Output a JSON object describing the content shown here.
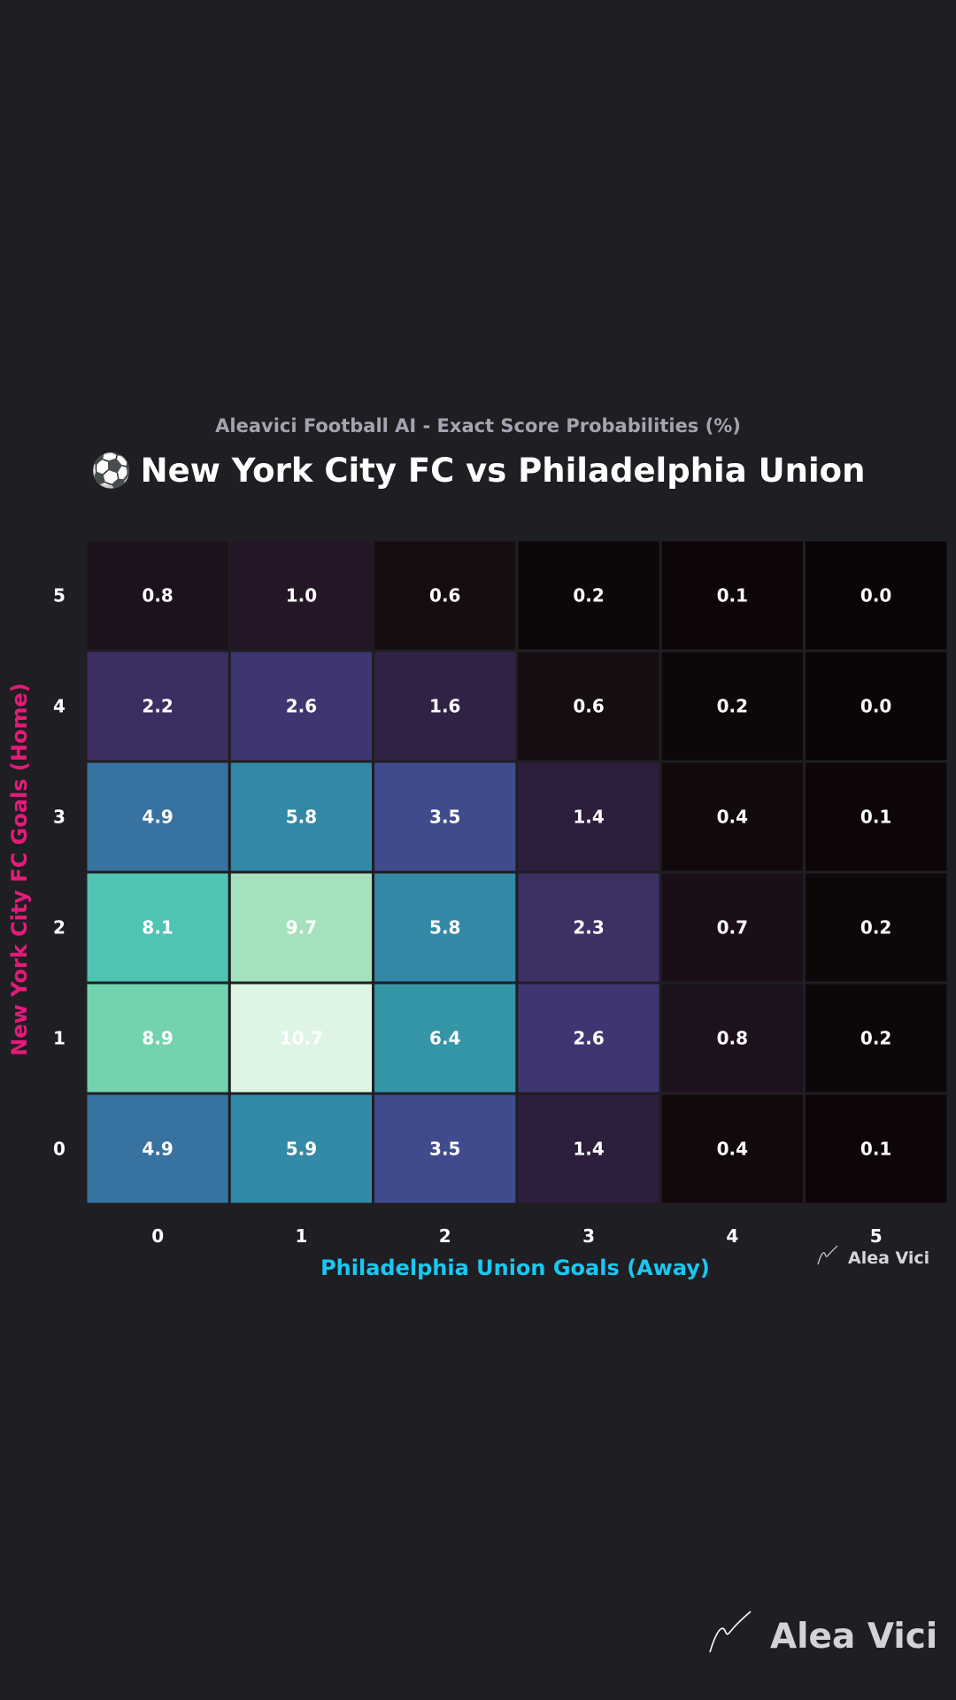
{
  "header": {
    "subtitle": "Aleavici Football AI - Exact Score Probabilities (%)",
    "title": "New York City FC vs Philadelphia Union",
    "title_icon": "soccer-ball"
  },
  "watermark": {
    "small_label": "Alea Vici",
    "big_label": "Alea Vici",
    "icon": "signature-icon"
  },
  "chart_data": {
    "type": "heatmap",
    "xlabel": "Philadelphia Union Goals (Away)",
    "ylabel": "New York City FC Goals (Home)",
    "x": [
      "0",
      "1",
      "2",
      "3",
      "4",
      "5"
    ],
    "y": [
      "5",
      "4",
      "3",
      "2",
      "1",
      "0"
    ],
    "values": [
      [
        0.8,
        1.0,
        0.6,
        0.2,
        0.1,
        0.0
      ],
      [
        2.2,
        2.6,
        1.6,
        0.6,
        0.2,
        0.0
      ],
      [
        4.9,
        5.8,
        3.5,
        1.4,
        0.4,
        0.1
      ],
      [
        8.1,
        9.7,
        5.8,
        2.3,
        0.7,
        0.2
      ],
      [
        8.9,
        10.7,
        6.4,
        2.6,
        0.8,
        0.2
      ],
      [
        4.9,
        5.9,
        3.5,
        1.4,
        0.4,
        0.1
      ]
    ],
    "value_format": "0.0",
    "colormap": "mako",
    "xlabel_color": "#19c8f0",
    "ylabel_color": "#e8197a",
    "background_color": "#1f1e23",
    "grid": false,
    "colorbar": false
  }
}
